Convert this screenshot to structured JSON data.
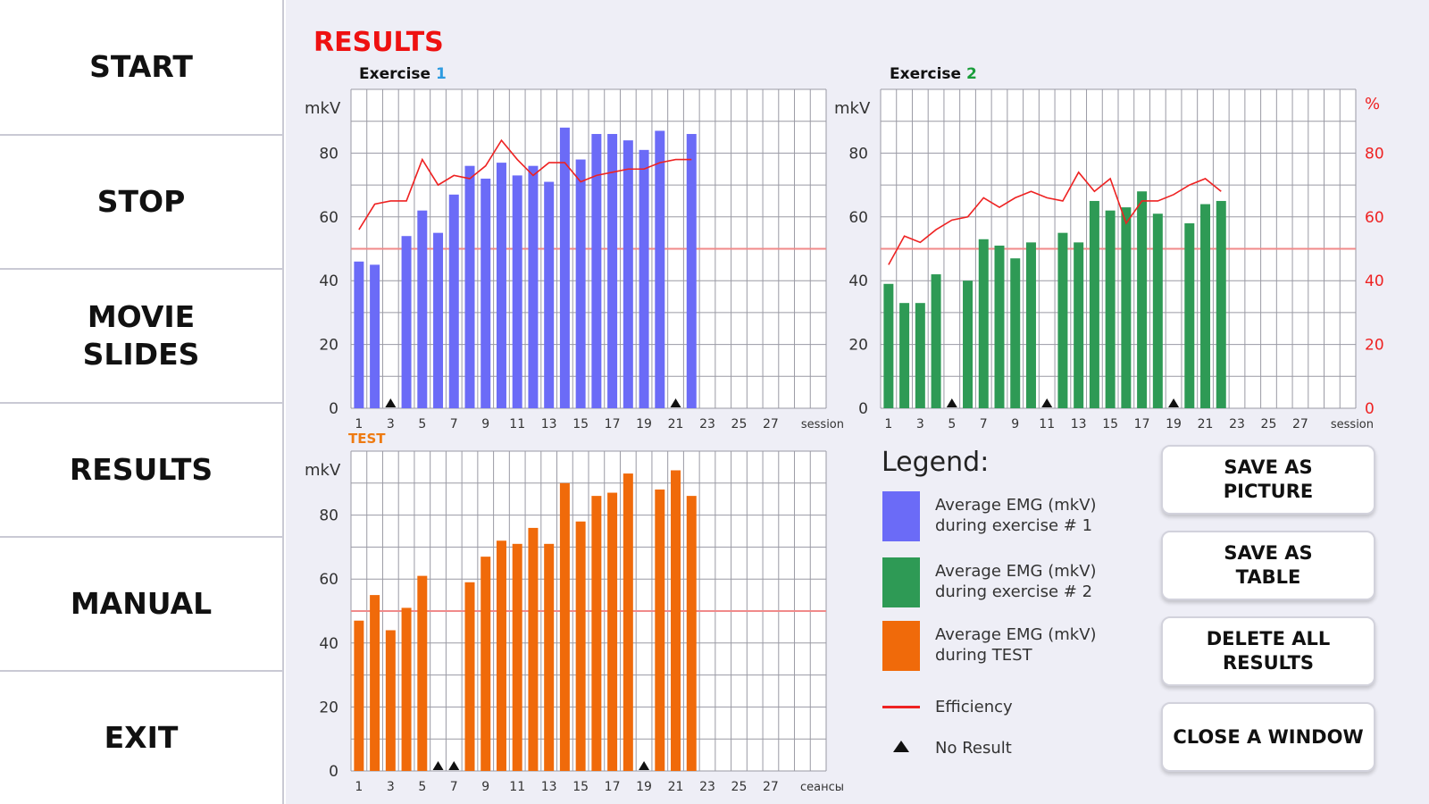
{
  "sidebar": {
    "items": [
      {
        "label": "START"
      },
      {
        "label": "STOP"
      },
      {
        "label": "MOVIE\nSLIDES"
      },
      {
        "label": "RESULTS"
      },
      {
        "label": "MANUAL"
      },
      {
        "label": "EXIT"
      }
    ]
  },
  "main": {
    "title": "RESULTS"
  },
  "legend": {
    "title": "Legend:",
    "items": [
      {
        "text": "Average EMG (mkV) during exercise # 1",
        "color": "#6b6bf7"
      },
      {
        "text": "Average EMG (mkV) during exercise # 2",
        "color": "#2e9a55"
      },
      {
        "text": "Average EMG (mkV) during TEST",
        "color": "#f06a0a"
      },
      {
        "text": "Efficiency",
        "color": "#ee2222"
      },
      {
        "text": "No Result",
        "color": "#111111"
      }
    ]
  },
  "actions": {
    "save_picture": "SAVE AS\nPICTURE",
    "save_table": "SAVE AS\nTABLE",
    "delete_all": "DELETE ALL\nRESULTS",
    "close_window": "CLOSE A WINDOW"
  },
  "chart_data": [
    {
      "type": "bar",
      "title_prefix": "Exercise",
      "title_number": "1",
      "ylabel": "mkV",
      "xlabel": "session",
      "ylim": [
        0,
        100
      ],
      "yticks": [
        0,
        20,
        40,
        60,
        80
      ],
      "xticks": [
        1,
        3,
        5,
        7,
        9,
        11,
        13,
        15,
        17,
        19,
        21,
        23,
        25,
        27
      ],
      "reference_line": 50,
      "bar_color": "#6b6bf7",
      "sessions": [
        1,
        2,
        3,
        4,
        5,
        6,
        7,
        8,
        9,
        10,
        11,
        12,
        13,
        14,
        15,
        16,
        17,
        18,
        19,
        20,
        21,
        22
      ],
      "values": [
        46,
        45,
        null,
        54,
        62,
        55,
        67,
        76,
        72,
        77,
        73,
        76,
        71,
        88,
        78,
        86,
        86,
        84,
        81,
        87,
        null,
        86
      ],
      "no_result_sessions": [
        3,
        21
      ],
      "efficiency": {
        "sessions": [
          1,
          2,
          3,
          4,
          5,
          6,
          7,
          8,
          9,
          10,
          11,
          12,
          13,
          14,
          15,
          16,
          17,
          18,
          19,
          20,
          21,
          22
        ],
        "values": [
          56,
          64,
          65,
          65,
          78,
          70,
          73,
          72,
          76,
          84,
          78,
          73,
          77,
          77,
          71,
          73,
          74,
          75,
          75,
          77,
          78,
          78
        ]
      }
    },
    {
      "type": "bar",
      "title_prefix": "Exercise",
      "title_number": "2",
      "ylabel": "mkV",
      "y2label": "%",
      "xlabel": "session",
      "ylim": [
        0,
        100
      ],
      "yticks": [
        0,
        20,
        40,
        60,
        80
      ],
      "y2ticks": [
        0,
        20,
        40,
        60,
        80
      ],
      "xticks": [
        1,
        3,
        5,
        7,
        9,
        11,
        13,
        15,
        17,
        19,
        21,
        23,
        25,
        27
      ],
      "reference_line": 50,
      "bar_color": "#2e9a55",
      "sessions": [
        1,
        2,
        3,
        4,
        5,
        6,
        7,
        8,
        9,
        10,
        11,
        12,
        13,
        14,
        15,
        16,
        17,
        18,
        19,
        20,
        21,
        22
      ],
      "values": [
        39,
        33,
        33,
        42,
        null,
        40,
        53,
        51,
        47,
        52,
        null,
        55,
        52,
        65,
        62,
        63,
        68,
        61,
        null,
        58,
        64,
        65
      ],
      "no_result_sessions": [
        5,
        11,
        19
      ],
      "efficiency": {
        "sessions": [
          1,
          2,
          3,
          4,
          5,
          6,
          7,
          8,
          9,
          10,
          11,
          12,
          13,
          14,
          15,
          16,
          17,
          18,
          19,
          20,
          21,
          22
        ],
        "values": [
          45,
          54,
          52,
          56,
          59,
          60,
          66,
          63,
          66,
          68,
          66,
          65,
          74,
          68,
          72,
          58,
          65,
          65,
          67,
          70,
          72,
          68
        ]
      }
    },
    {
      "type": "bar",
      "title": "TEST",
      "ylabel": "mkV",
      "xlabel": "сеансы",
      "ylim": [
        0,
        100
      ],
      "yticks": [
        0,
        20,
        40,
        60,
        80
      ],
      "xticks": [
        1,
        3,
        5,
        7,
        9,
        11,
        13,
        15,
        17,
        19,
        21,
        23,
        25,
        27
      ],
      "reference_line": 50,
      "bar_color": "#f06a0a",
      "sessions": [
        1,
        2,
        3,
        4,
        5,
        6,
        7,
        8,
        9,
        10,
        11,
        12,
        13,
        14,
        15,
        16,
        17,
        18,
        19,
        20,
        21,
        22
      ],
      "values": [
        47,
        55,
        44,
        51,
        61,
        null,
        null,
        59,
        67,
        72,
        71,
        76,
        71,
        90,
        78,
        86,
        87,
        93,
        null,
        88,
        94,
        86
      ],
      "no_result_sessions": [
        6,
        7,
        19
      ]
    }
  ]
}
